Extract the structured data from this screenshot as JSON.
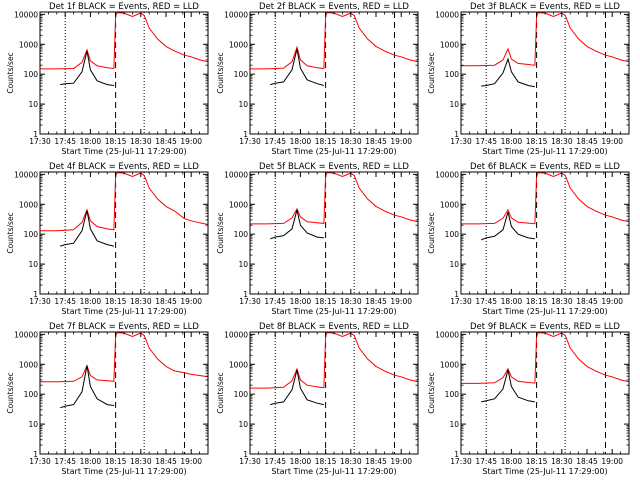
{
  "chart_data": {
    "type": "line",
    "layout": "3x3 grid of panels",
    "x_tick_labels": [
      "17:30",
      "17:45",
      "18:00",
      "18:15",
      "18:30",
      "18:45",
      "19:00"
    ],
    "xlim_minutes_after_1730": [
      0,
      100
    ],
    "xlabel": "Start Time (25-Jul-11 17:29:00)",
    "ylabel": "Counts/sec",
    "yscale": "log",
    "ylim": [
      1,
      12000
    ],
    "y_tick_labels": [
      "1",
      "10",
      "100",
      "1000",
      "10000"
    ],
    "series_legend": "BLACK = Events, RED = LLD",
    "series_colors": {
      "events": "#000000",
      "lld": "#ff0000"
    },
    "panels": [
      {
        "title": "Det 1f BLACK = Events, RED = LLD",
        "dotted_lines_min": [
          15,
          62
        ],
        "dashed_lines_min": [
          45,
          86
        ],
        "lld": {
          "x": [
            0,
            10,
            20,
            25,
            28,
            30,
            34,
            40,
            44,
            45,
            46,
            50,
            55,
            60,
            62,
            65,
            70,
            75,
            80,
            86,
            90,
            95,
            100
          ],
          "y": [
            150,
            150,
            155,
            250,
            650,
            280,
            190,
            165,
            155,
            9000,
            11500,
            11000,
            8500,
            11000,
            9200,
            3500,
            1500,
            850,
            600,
            430,
            380,
            300,
            260
          ]
        },
        "events": {
          "x": [
            12,
            15,
            20,
            25,
            28,
            30,
            34,
            40,
            44
          ],
          "y": [
            45,
            48,
            50,
            120,
            600,
            140,
            60,
            45,
            42
          ]
        }
      },
      {
        "title": "Det 2f BLACK = Events, RED = LLD",
        "dotted_lines_min": [
          15,
          62
        ],
        "dashed_lines_min": [
          45,
          86
        ],
        "lld": {
          "x": [
            0,
            10,
            20,
            25,
            28,
            30,
            34,
            40,
            44,
            45,
            46,
            50,
            55,
            60,
            62,
            65,
            70,
            75,
            80,
            86,
            90,
            95,
            100
          ],
          "y": [
            150,
            150,
            160,
            260,
            800,
            300,
            190,
            165,
            155,
            9000,
            11500,
            11000,
            8500,
            11000,
            9200,
            3500,
            1500,
            850,
            600,
            430,
            380,
            300,
            260
          ]
        },
        "events": {
          "x": [
            12,
            15,
            20,
            25,
            28,
            30,
            34,
            40,
            44
          ],
          "y": [
            45,
            50,
            55,
            140,
            700,
            160,
            65,
            48,
            42
          ]
        }
      },
      {
        "title": "Det 3f BLACK = Events, RED = LLD",
        "dotted_lines_min": [
          15,
          62
        ],
        "dashed_lines_min": [
          45,
          86
        ],
        "lld": {
          "x": [
            0,
            10,
            20,
            25,
            28,
            30,
            34,
            40,
            44,
            45,
            46,
            50,
            55,
            60,
            62,
            65,
            70,
            75,
            80,
            86,
            90,
            95,
            100
          ],
          "y": [
            190,
            190,
            200,
            300,
            700,
            320,
            230,
            210,
            200,
            9000,
            11500,
            11000,
            8500,
            11000,
            9200,
            3500,
            1500,
            850,
            600,
            430,
            380,
            300,
            260
          ]
        },
        "events": {
          "x": [
            12,
            15,
            20,
            25,
            28,
            30,
            34,
            40,
            44
          ],
          "y": [
            40,
            42,
            48,
            110,
            320,
            120,
            55,
            42,
            38
          ]
        }
      },
      {
        "title": "Det 4f BLACK = Events, RED = LLD",
        "dotted_lines_min": [
          15,
          62
        ],
        "dashed_lines_min": [
          45,
          86
        ],
        "lld": {
          "x": [
            0,
            10,
            20,
            25,
            28,
            30,
            34,
            40,
            44,
            45,
            46,
            50,
            55,
            60,
            62,
            65,
            70,
            75,
            80,
            86,
            90,
            95,
            100
          ],
          "y": [
            130,
            130,
            140,
            250,
            650,
            280,
            180,
            150,
            140,
            9000,
            11500,
            11000,
            8500,
            11000,
            9200,
            3500,
            1500,
            850,
            600,
            330,
            280,
            240,
            210
          ]
        },
        "events": {
          "x": [
            12,
            15,
            20,
            25,
            28,
            30,
            34,
            40,
            44
          ],
          "y": [
            40,
            45,
            50,
            130,
            620,
            150,
            60,
            45,
            40
          ]
        }
      },
      {
        "title": "Det 5f BLACK = Events, RED = LLD",
        "dotted_lines_min": [
          15,
          62
        ],
        "dashed_lines_min": [
          45,
          86
        ],
        "lld": {
          "x": [
            0,
            10,
            20,
            25,
            28,
            30,
            34,
            40,
            44,
            45,
            46,
            50,
            55,
            60,
            62,
            65,
            70,
            75,
            80,
            86,
            90,
            95,
            100
          ],
          "y": [
            220,
            220,
            230,
            350,
            700,
            380,
            260,
            240,
            230,
            9000,
            11500,
            11000,
            8500,
            11000,
            9200,
            3500,
            1500,
            850,
            600,
            430,
            380,
            300,
            260
          ]
        },
        "events": {
          "x": [
            12,
            15,
            20,
            25,
            28,
            30,
            34,
            40,
            44
          ],
          "y": [
            70,
            80,
            90,
            150,
            650,
            200,
            110,
            80,
            75
          ]
        }
      },
      {
        "title": "Det 6f BLACK = Events, RED = LLD",
        "dotted_lines_min": [
          15,
          62
        ],
        "dashed_lines_min": [
          45,
          86
        ],
        "lld": {
          "x": [
            0,
            10,
            20,
            25,
            28,
            30,
            34,
            40,
            44,
            45,
            46,
            50,
            55,
            60,
            62,
            65,
            70,
            75,
            80,
            86,
            90,
            95,
            100
          ],
          "y": [
            220,
            220,
            230,
            340,
            650,
            350,
            250,
            235,
            225,
            9000,
            11500,
            11000,
            8500,
            11000,
            9200,
            3500,
            1500,
            850,
            600,
            430,
            380,
            300,
            260
          ]
        },
        "events": {
          "x": [
            12,
            15,
            20,
            25,
            28,
            30,
            34,
            40,
            44
          ],
          "y": [
            65,
            75,
            85,
            140,
            550,
            180,
            100,
            75,
            70
          ]
        }
      },
      {
        "title": "Det 7f BLACK = Events, RED = LLD",
        "dotted_lines_min": [
          15,
          62
        ],
        "dashed_lines_min": [
          45,
          86
        ],
        "lld": {
          "x": [
            0,
            10,
            20,
            25,
            28,
            30,
            34,
            40,
            44,
            45,
            46,
            50,
            55,
            60,
            62,
            65,
            70,
            75,
            80,
            86,
            90,
            95,
            100
          ],
          "y": [
            260,
            260,
            270,
            380,
            900,
            420,
            300,
            280,
            270,
            9000,
            11500,
            11000,
            8500,
            11000,
            9200,
            3500,
            1500,
            850,
            600,
            520,
            460,
            420,
            380
          ]
        },
        "events": {
          "x": [
            12,
            15,
            20,
            25,
            28,
            30,
            34,
            40,
            44
          ],
          "y": [
            35,
            40,
            45,
            120,
            900,
            180,
            70,
            45,
            42
          ]
        }
      },
      {
        "title": "Det 8f BLACK = Events, RED = LLD",
        "dotted_lines_min": [
          15,
          62
        ],
        "dashed_lines_min": [
          45,
          86
        ],
        "lld": {
          "x": [
            0,
            10,
            20,
            25,
            28,
            30,
            34,
            40,
            44,
            45,
            46,
            50,
            55,
            60,
            62,
            65,
            70,
            75,
            80,
            86,
            90,
            95,
            100
          ],
          "y": [
            160,
            160,
            170,
            280,
            700,
            300,
            200,
            175,
            165,
            9000,
            11500,
            11000,
            8500,
            11000,
            9200,
            3500,
            1500,
            850,
            600,
            430,
            380,
            300,
            260
          ]
        },
        "events": {
          "x": [
            12,
            15,
            20,
            25,
            28,
            30,
            34,
            40,
            44
          ],
          "y": [
            45,
            50,
            55,
            140,
            650,
            160,
            65,
            50,
            45
          ]
        }
      },
      {
        "title": "Det 9f BLACK = Events, RED = LLD",
        "dotted_lines_min": [
          15,
          62
        ],
        "dashed_lines_min": [
          45,
          86
        ],
        "lld": {
          "x": [
            0,
            10,
            20,
            25,
            28,
            30,
            34,
            40,
            44,
            45,
            46,
            50,
            55,
            60,
            62,
            65,
            70,
            75,
            80,
            86,
            90,
            95,
            100
          ],
          "y": [
            230,
            230,
            240,
            360,
            700,
            380,
            270,
            245,
            235,
            9000,
            11500,
            11000,
            8500,
            11000,
            9200,
            3500,
            1500,
            850,
            600,
            430,
            380,
            300,
            260
          ]
        },
        "events": {
          "x": [
            12,
            15,
            20,
            25,
            28,
            30,
            34,
            40,
            44
          ],
          "y": [
            55,
            60,
            70,
            150,
            650,
            180,
            80,
            60,
            55
          ]
        }
      }
    ]
  }
}
